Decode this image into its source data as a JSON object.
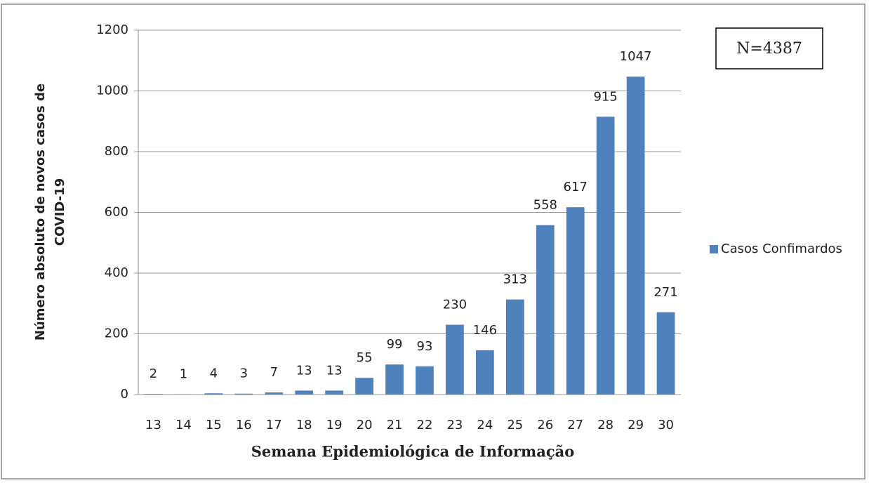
{
  "chart_data": {
    "type": "bar",
    "x_label": "Semana Epidemiológica de Informação",
    "y_label": [
      "Número absoluto de novos casos de",
      "COVID-19"
    ],
    "annotation": "N=4387",
    "categories": [
      "13",
      "14",
      "15",
      "16",
      "17",
      "18",
      "19",
      "20",
      "21",
      "22",
      "23",
      "24",
      "25",
      "26",
      "27",
      "28",
      "29",
      "30"
    ],
    "series": [
      {
        "name": "Casos Confimardos",
        "color": "#4f81bd",
        "values": [
          2,
          1,
          4,
          3,
          7,
          13,
          13,
          55,
          99,
          93,
          230,
          146,
          313,
          558,
          617,
          915,
          1047,
          271
        ]
      }
    ],
    "ylim": [
      0,
      1200
    ],
    "yticks": [
      0,
      200,
      400,
      600,
      800,
      1000,
      1200
    ],
    "grid": true,
    "legend": "right"
  }
}
